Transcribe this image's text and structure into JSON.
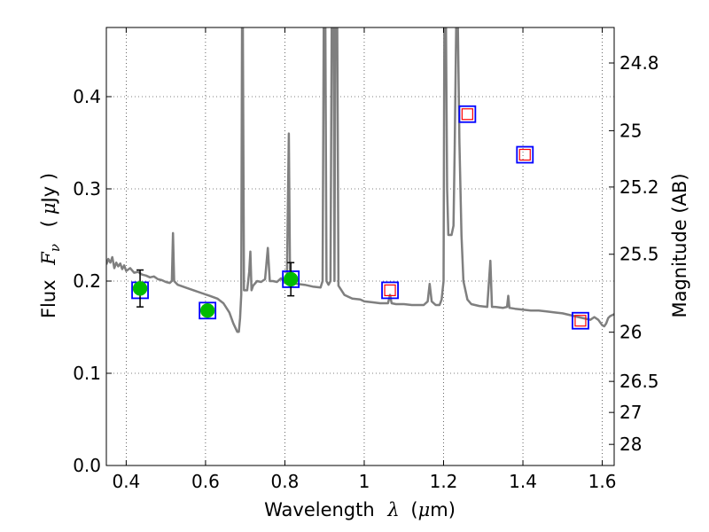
{
  "chart_data": {
    "type": "scatter",
    "xlabel": "Wavelength",
    "xlabel_symbol": "λ",
    "xlabel_unit_open": "(",
    "xlabel_unit_mu": "μ",
    "xlabel_unit_rest": "m)",
    "ylabel": "Flux",
    "ylabel_symbol": "F",
    "ylabel_symbol_sub": "ν",
    "ylabel_unit_open": "(",
    "ylabel_unit_mu": "μ",
    "ylabel_unit_rest": "Jy )",
    "y2label": "Magnitude (AB)",
    "xlim": [
      0.35,
      1.63
    ],
    "ylim": [
      0.0,
      0.475
    ],
    "grid": true,
    "xticks": [
      {
        "v": 0.4,
        "label": "0.4"
      },
      {
        "v": 0.6,
        "label": "0.6"
      },
      {
        "v": 0.8,
        "label": "0.8"
      },
      {
        "v": 1.0,
        "label": "1"
      },
      {
        "v": 1.2,
        "label": "1.2"
      },
      {
        "v": 1.4,
        "label": "1.4"
      },
      {
        "v": 1.6,
        "label": "1.6"
      }
    ],
    "yticks": [
      {
        "v": 0.0,
        "label": "0.0"
      },
      {
        "v": 0.1,
        "label": "0.1"
      },
      {
        "v": 0.2,
        "label": "0.2"
      },
      {
        "v": 0.3,
        "label": "0.3"
      },
      {
        "v": 0.4,
        "label": "0.4"
      }
    ],
    "y2ticks": [
      {
        "mag": 24.8,
        "label": "24.8"
      },
      {
        "mag": 25.0,
        "label": "25"
      },
      {
        "mag": 25.2,
        "label": "25.2"
      },
      {
        "mag": 25.5,
        "label": "25.5"
      },
      {
        "mag": 26.0,
        "label": "26"
      },
      {
        "mag": 26.5,
        "label": "26.5"
      },
      {
        "mag": 27.0,
        "label": "27"
      },
      {
        "mag": 28.0,
        "label": "28"
      }
    ],
    "colors": {
      "sed": "#7f7f7f",
      "observed": "#00bb00",
      "model_box": "#0000ff",
      "upper_box": "#ff0000",
      "errorbar": "#000000"
    },
    "series": [
      {
        "kind": "sed",
        "points": [
          [
            0.35,
            0.218
          ],
          [
            0.355,
            0.224
          ],
          [
            0.36,
            0.22
          ],
          [
            0.365,
            0.226
          ],
          [
            0.37,
            0.214
          ],
          [
            0.375,
            0.22
          ],
          [
            0.38,
            0.216
          ],
          [
            0.385,
            0.219
          ],
          [
            0.39,
            0.213
          ],
          [
            0.395,
            0.217
          ],
          [
            0.4,
            0.211
          ],
          [
            0.41,
            0.214
          ],
          [
            0.42,
            0.209
          ],
          [
            0.43,
            0.21
          ],
          [
            0.44,
            0.207
          ],
          [
            0.45,
            0.206
          ],
          [
            0.46,
            0.204
          ],
          [
            0.47,
            0.205
          ],
          [
            0.48,
            0.202
          ],
          [
            0.49,
            0.201
          ],
          [
            0.5,
            0.199
          ],
          [
            0.51,
            0.198
          ],
          [
            0.515,
            0.2
          ],
          [
            0.518,
            0.252
          ],
          [
            0.521,
            0.2
          ],
          [
            0.53,
            0.196
          ],
          [
            0.55,
            0.193
          ],
          [
            0.57,
            0.19
          ],
          [
            0.59,
            0.187
          ],
          [
            0.61,
            0.184
          ],
          [
            0.63,
            0.181
          ],
          [
            0.645,
            0.176
          ],
          [
            0.66,
            0.166
          ],
          [
            0.67,
            0.154
          ],
          [
            0.68,
            0.145
          ],
          [
            0.684,
            0.145
          ],
          [
            0.687,
            0.16
          ],
          [
            0.69,
            0.185
          ],
          [
            0.692,
            0.48
          ],
          [
            0.694,
            0.48
          ],
          [
            0.697,
            0.19
          ],
          [
            0.7,
            0.19
          ],
          [
            0.705,
            0.19
          ],
          [
            0.71,
            0.21
          ],
          [
            0.713,
            0.232
          ],
          [
            0.716,
            0.19
          ],
          [
            0.72,
            0.195
          ],
          [
            0.73,
            0.2
          ],
          [
            0.74,
            0.199
          ],
          [
            0.75,
            0.202
          ],
          [
            0.757,
            0.236
          ],
          [
            0.762,
            0.2
          ],
          [
            0.77,
            0.2
          ],
          [
            0.78,
            0.199
          ],
          [
            0.79,
            0.203
          ],
          [
            0.8,
            0.198
          ],
          [
            0.805,
            0.2
          ],
          [
            0.81,
            0.36
          ],
          [
            0.813,
            0.2
          ],
          [
            0.82,
            0.198
          ],
          [
            0.83,
            0.197
          ],
          [
            0.85,
            0.196
          ],
          [
            0.87,
            0.194
          ],
          [
            0.89,
            0.193
          ],
          [
            0.895,
            0.2
          ],
          [
            0.898,
            0.48
          ],
          [
            0.902,
            0.48
          ],
          [
            0.905,
            0.2
          ],
          [
            0.91,
            0.196
          ],
          [
            0.915,
            0.2
          ],
          [
            0.918,
            0.48
          ],
          [
            0.923,
            0.48
          ],
          [
            0.925,
            0.2
          ],
          [
            0.927,
            0.48
          ],
          [
            0.932,
            0.48
          ],
          [
            0.935,
            0.195
          ],
          [
            0.95,
            0.185
          ],
          [
            0.97,
            0.181
          ],
          [
            0.99,
            0.18
          ],
          [
            1.0,
            0.178
          ],
          [
            1.02,
            0.177
          ],
          [
            1.04,
            0.176
          ],
          [
            1.06,
            0.176
          ],
          [
            1.065,
            0.185
          ],
          [
            1.069,
            0.176
          ],
          [
            1.08,
            0.175
          ],
          [
            1.1,
            0.175
          ],
          [
            1.12,
            0.174
          ],
          [
            1.15,
            0.174
          ],
          [
            1.16,
            0.178
          ],
          [
            1.165,
            0.197
          ],
          [
            1.17,
            0.178
          ],
          [
            1.18,
            0.174
          ],
          [
            1.19,
            0.174
          ],
          [
            1.195,
            0.18
          ],
          [
            1.2,
            0.2
          ],
          [
            1.202,
            0.48
          ],
          [
            1.206,
            0.48
          ],
          [
            1.209,
            0.3
          ],
          [
            1.212,
            0.25
          ],
          [
            1.215,
            0.25
          ],
          [
            1.22,
            0.25
          ],
          [
            1.225,
            0.26
          ],
          [
            1.228,
            0.34
          ],
          [
            1.232,
            0.48
          ],
          [
            1.236,
            0.48
          ],
          [
            1.24,
            0.35
          ],
          [
            1.245,
            0.25
          ],
          [
            1.25,
            0.2
          ],
          [
            1.26,
            0.18
          ],
          [
            1.27,
            0.175
          ],
          [
            1.29,
            0.173
          ],
          [
            1.31,
            0.172
          ],
          [
            1.318,
            0.222
          ],
          [
            1.322,
            0.172
          ],
          [
            1.33,
            0.172
          ],
          [
            1.35,
            0.171
          ],
          [
            1.36,
            0.172
          ],
          [
            1.363,
            0.184
          ],
          [
            1.366,
            0.171
          ],
          [
            1.38,
            0.17
          ],
          [
            1.4,
            0.169
          ],
          [
            1.42,
            0.168
          ],
          [
            1.44,
            0.168
          ],
          [
            1.46,
            0.167
          ],
          [
            1.48,
            0.166
          ],
          [
            1.5,
            0.165
          ],
          [
            1.52,
            0.163
          ],
          [
            1.54,
            0.161
          ],
          [
            1.56,
            0.159
          ],
          [
            1.57,
            0.158
          ],
          [
            1.58,
            0.161
          ],
          [
            1.59,
            0.158
          ],
          [
            1.6,
            0.152
          ],
          [
            1.605,
            0.151
          ],
          [
            1.61,
            0.154
          ],
          [
            1.615,
            0.16
          ],
          [
            1.62,
            0.162
          ],
          [
            1.63,
            0.164
          ]
        ]
      },
      {
        "kind": "model_boxes",
        "points": [
          {
            "x": 0.435,
            "y": 0.19
          },
          {
            "x": 0.605,
            "y": 0.168
          },
          {
            "x": 0.815,
            "y": 0.202
          },
          {
            "x": 1.065,
            "y": 0.19
          },
          {
            "x": 1.26,
            "y": 0.381
          },
          {
            "x": 1.405,
            "y": 0.337
          },
          {
            "x": 1.545,
            "y": 0.157
          }
        ]
      },
      {
        "kind": "upper_limit_boxes",
        "points": [
          {
            "x": 1.065,
            "y": 0.19
          },
          {
            "x": 1.26,
            "y": 0.381
          },
          {
            "x": 1.405,
            "y": 0.337
          },
          {
            "x": 1.545,
            "y": 0.157
          }
        ]
      },
      {
        "kind": "observed",
        "points": [
          {
            "x": 0.435,
            "y": 0.192,
            "yerr": 0.02
          },
          {
            "x": 0.605,
            "y": 0.168,
            "yerr": 0.0
          },
          {
            "x": 0.815,
            "y": 0.202,
            "yerr": 0.018
          }
        ]
      }
    ]
  }
}
